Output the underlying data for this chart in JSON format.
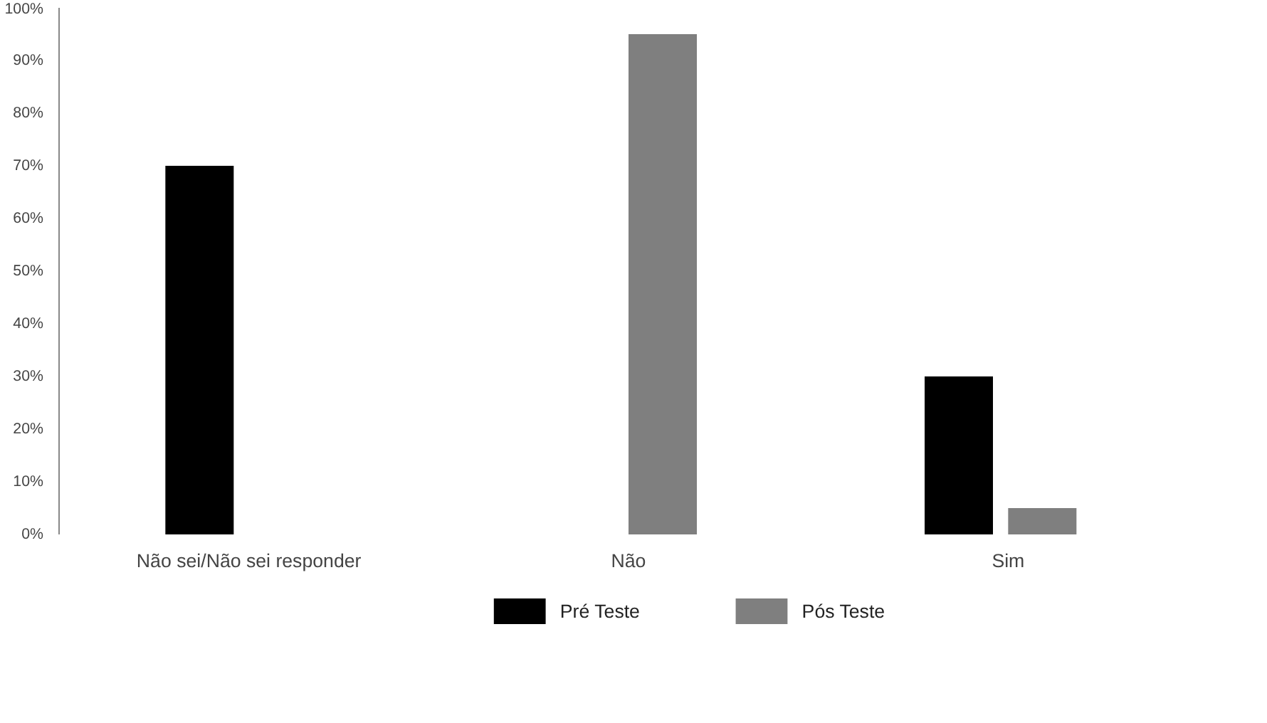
{
  "chart_data": {
    "type": "bar",
    "categories": [
      "Não sei/Não sei responder",
      "Não",
      "Sim"
    ],
    "series": [
      {
        "name": "Pré Teste",
        "color": "#000000",
        "values": [
          70,
          0,
          30
        ]
      },
      {
        "name": "Pós Teste",
        "color": "#7f7f7f",
        "values": [
          0,
          95,
          5
        ]
      }
    ],
    "ylim": [
      0,
      100
    ],
    "yticks": [
      {
        "value": 0,
        "label": "0%"
      },
      {
        "value": 10,
        "label": "10%"
      },
      {
        "value": 20,
        "label": "20%"
      },
      {
        "value": 30,
        "label": "30%"
      },
      {
        "value": 40,
        "label": "40%"
      },
      {
        "value": 50,
        "label": "50%"
      },
      {
        "value": 60,
        "label": "60%"
      },
      {
        "value": 70,
        "label": "70%"
      },
      {
        "value": 80,
        "label": "80%"
      },
      {
        "value": 90,
        "label": "90%"
      },
      {
        "value": 100,
        "label": "100%"
      }
    ],
    "grid": false,
    "legend": "bottom"
  }
}
